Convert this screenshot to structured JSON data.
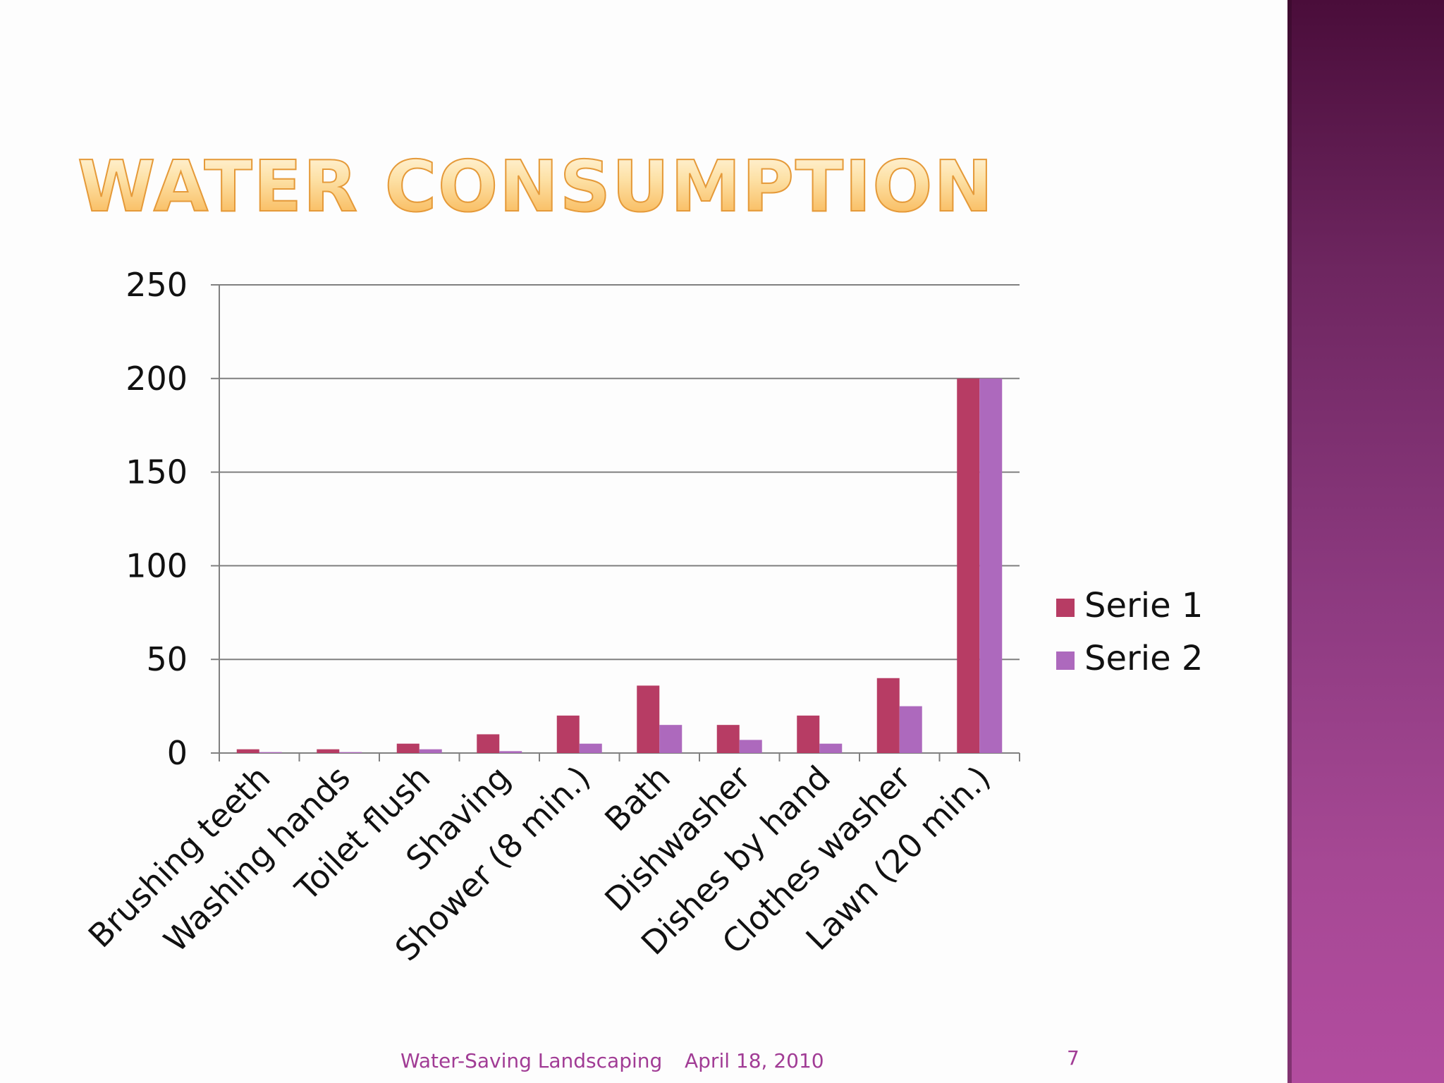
{
  "slide": {
    "title": "Water Consumption",
    "footer_center": "Water-Saving Landscaping",
    "footer_date": "April 18, 2010",
    "page_number": "7"
  },
  "colors": {
    "serie1": "#b73c64",
    "serie2": "#ad69bd",
    "gridline": "#808080",
    "text": "#111111",
    "footer": "#a13c95"
  },
  "chart_data": {
    "type": "bar",
    "title": "",
    "xlabel": "",
    "ylabel": "",
    "ylim": [
      0,
      250
    ],
    "yticks": [
      0,
      50,
      100,
      150,
      200,
      250
    ],
    "grid": true,
    "legend_position": "right",
    "categories": [
      "Brushing teeth",
      "Washing hands",
      "Toilet flush",
      "Shaving",
      "Shower (8 min.)",
      "Bath",
      "Dishwasher",
      "Dishes by hand",
      "Clothes washer",
      "Lawn (20 min.)"
    ],
    "series": [
      {
        "name": "Serie 1",
        "values": [
          2,
          2,
          5,
          10,
          20,
          36,
          15,
          20,
          40,
          200
        ]
      },
      {
        "name": "Serie 2",
        "values": [
          0.5,
          0.5,
          2,
          1,
          5,
          15,
          7,
          5,
          25,
          200
        ]
      }
    ]
  }
}
